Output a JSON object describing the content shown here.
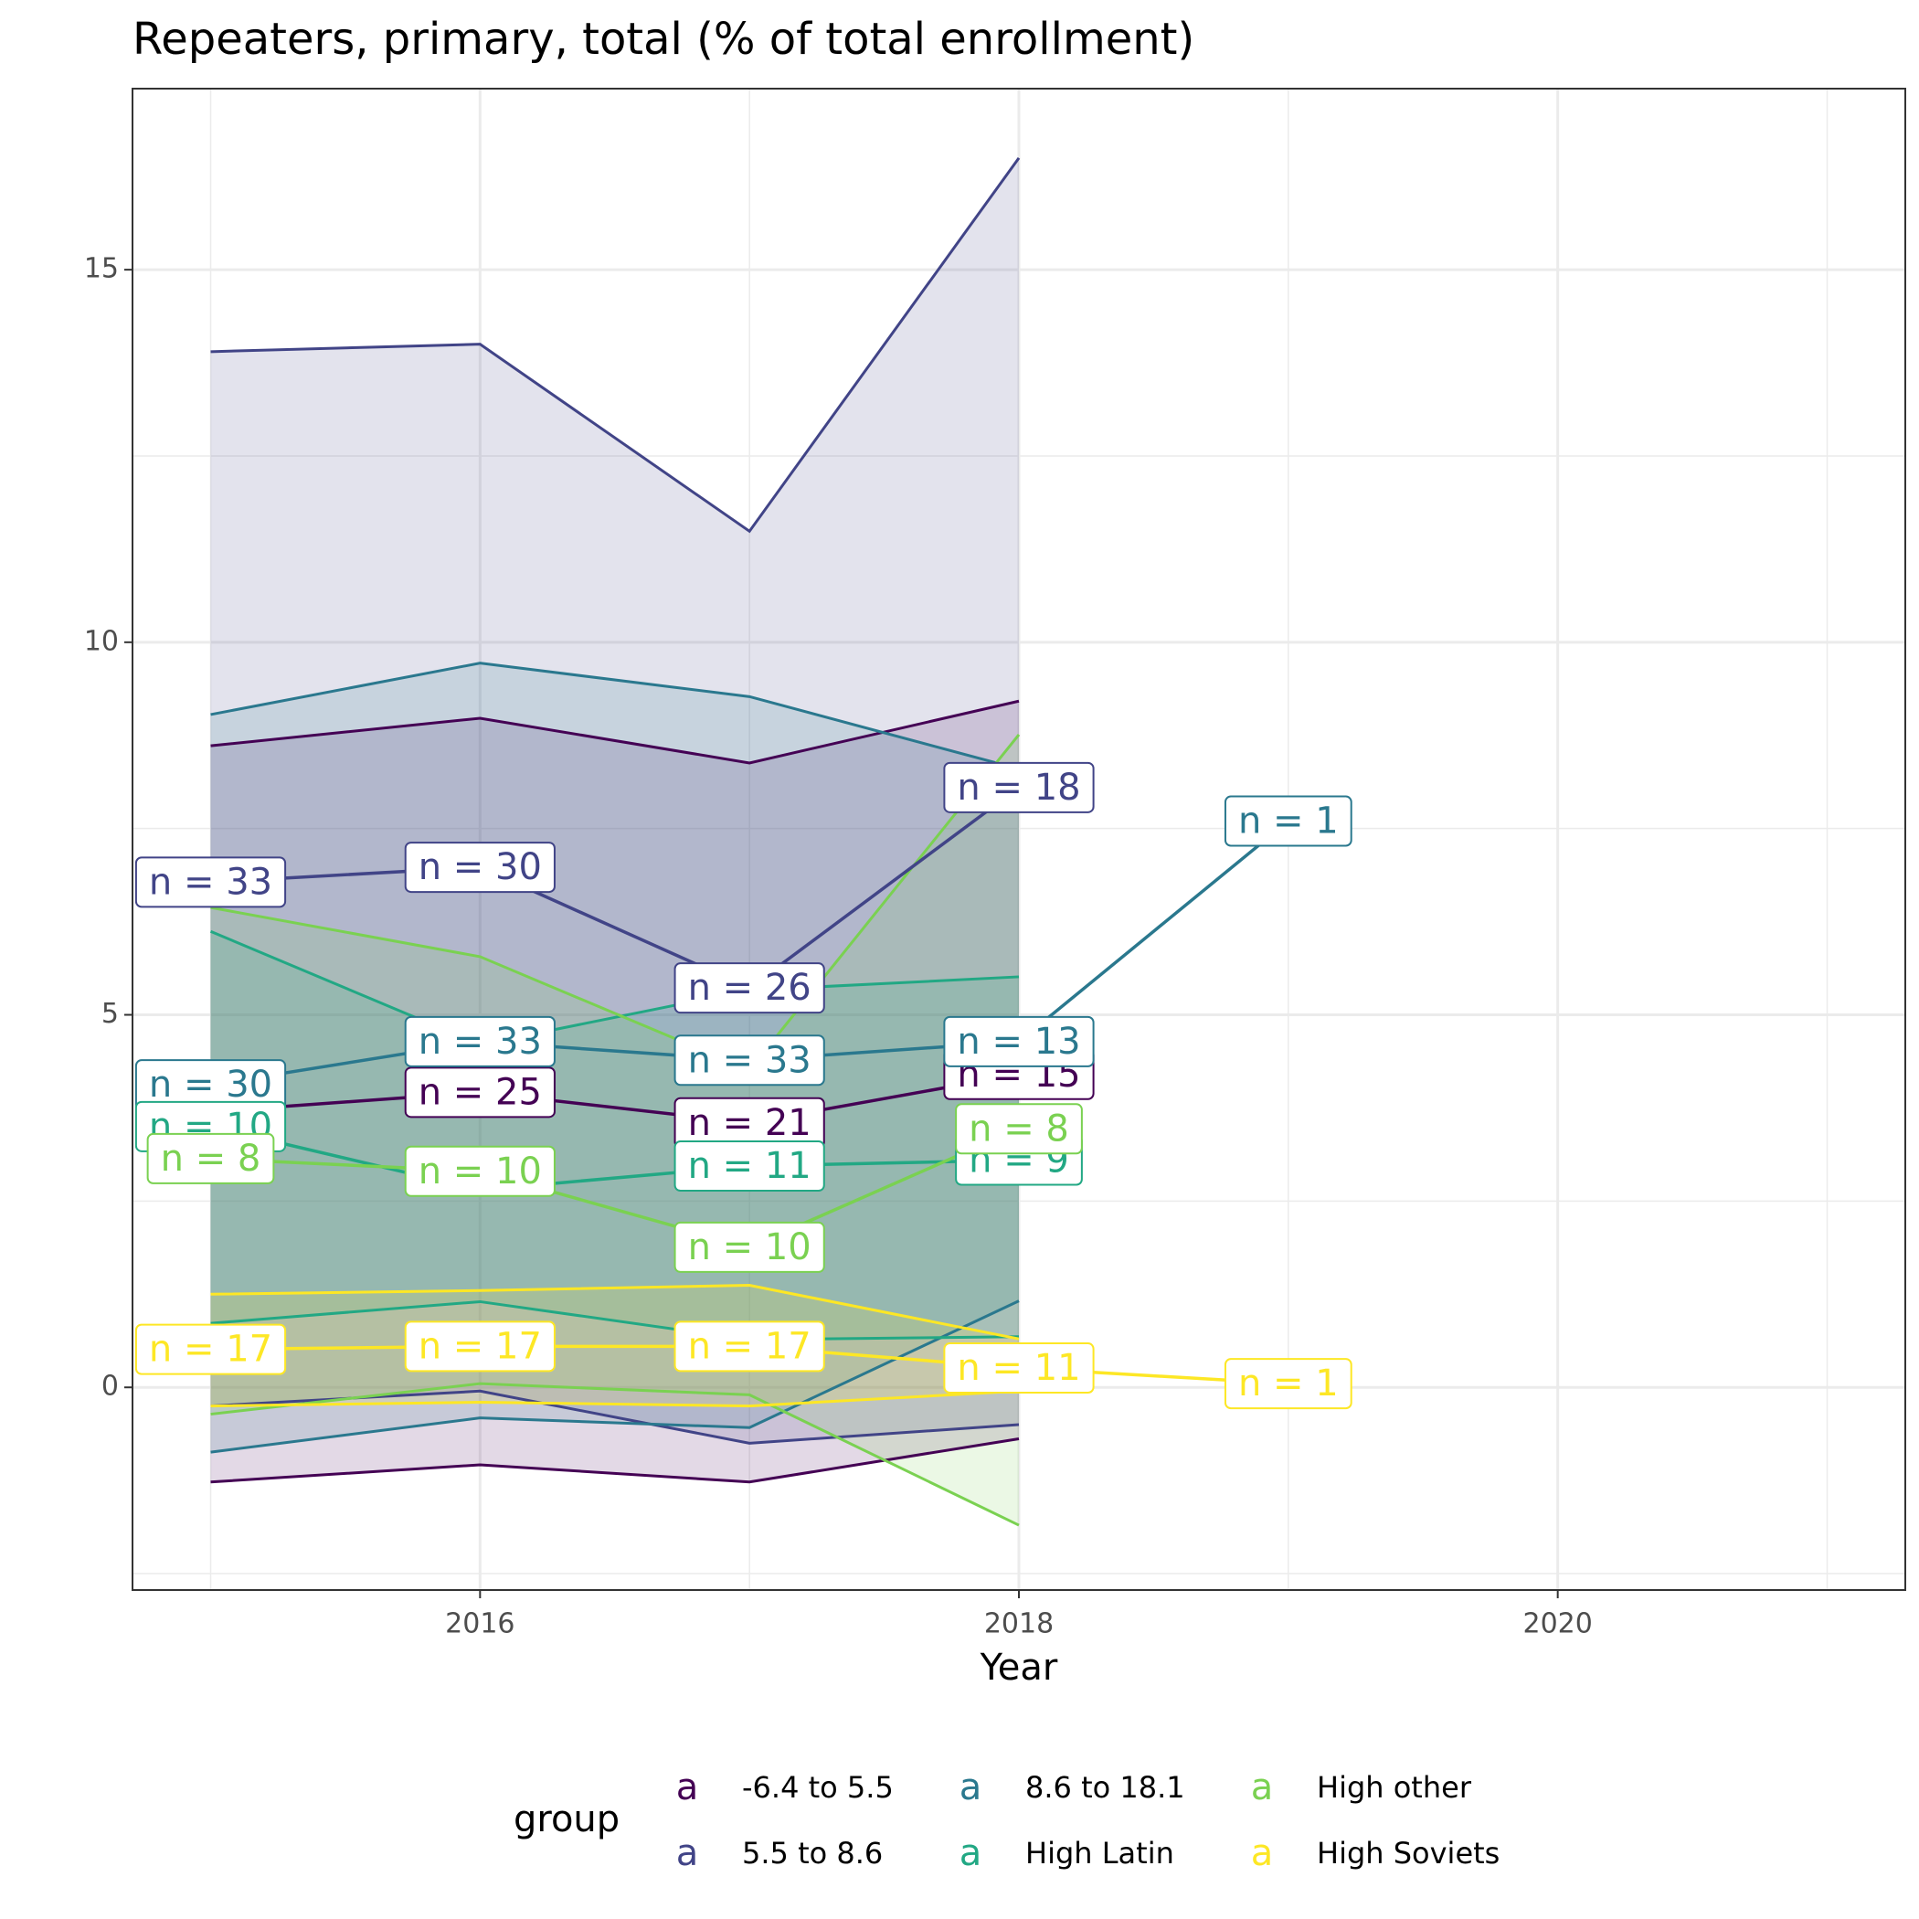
{
  "chart_data": {
    "type": "line",
    "title": "Repeaters, primary, total (% of total enrollment)",
    "x_label": "Year",
    "legend_title": "group",
    "legend_glyph": "a",
    "legend_position": "bottom",
    "grid": true,
    "ribbon_opacity": 0.15,
    "x": [
      2015,
      2016,
      2017,
      2018,
      2019
    ],
    "xlim": [
      2014.71,
      2021.29
    ],
    "xticks": [
      2016,
      2018,
      2020
    ],
    "ylim": [
      -2.72,
      17.43
    ],
    "yticks": [
      0,
      5,
      10,
      15
    ],
    "series": [
      {
        "name": "-6.4 to 5.5",
        "color": "#440154",
        "values": [
          3.7,
          3.96,
          3.55,
          4.2,
          null
        ],
        "upper": [
          8.61,
          8.98,
          8.38,
          9.21,
          null
        ],
        "lower": [
          -1.27,
          -1.04,
          -1.27,
          -0.69,
          null
        ],
        "labels": [
          null,
          "n = 25",
          "n = 21",
          "n = 15",
          null
        ]
      },
      {
        "name": "5.5 to 8.6",
        "color": "#414487",
        "values": [
          6.78,
          6.98,
          5.36,
          8.05,
          null
        ],
        "upper": [
          13.9,
          14.0,
          11.49,
          16.5,
          null
        ],
        "lower": [
          -0.25,
          -0.05,
          -0.75,
          -0.5,
          null
        ],
        "labels": [
          "n = 33",
          "n = 30",
          "n = 26",
          "n = 18",
          null
        ]
      },
      {
        "name": "8.6 to 18.1",
        "color": "#2A788E",
        "values": [
          4.06,
          4.64,
          4.39,
          4.64,
          7.6
        ],
        "upper": [
          9.03,
          9.72,
          9.27,
          8.3,
          null
        ],
        "lower": [
          -0.87,
          -0.41,
          -0.54,
          1.16,
          null
        ],
        "labels": [
          "n = 30",
          "n = 33",
          "n = 33",
          "n = 13",
          "n = 1"
        ]
      },
      {
        "name": "High Latin",
        "color": "#22A884",
        "values": [
          3.5,
          2.65,
          2.97,
          3.05,
          null
        ],
        "upper": [
          6.12,
          4.6,
          5.33,
          5.51,
          null
        ],
        "lower": [
          0.86,
          1.15,
          0.64,
          0.68,
          null
        ],
        "labels": [
          "n = 10",
          null,
          "n = 11",
          "n = 9",
          null
        ]
      },
      {
        "name": "High other",
        "color": "#7AD151",
        "values": [
          3.07,
          2.9,
          1.88,
          3.47,
          null
        ],
        "upper": [
          6.44,
          5.78,
          4.26,
          8.76,
          null
        ],
        "lower": [
          -0.36,
          0.05,
          -0.1,
          -1.85,
          null
        ],
        "labels": [
          "n = 8",
          "n = 10",
          "n = 10",
          "n = 8",
          null
        ]
      },
      {
        "name": "High Soviets",
        "color": "#FDE725",
        "values": [
          0.51,
          0.55,
          0.55,
          0.26,
          0.05
        ],
        "upper": [
          1.25,
          1.3,
          1.37,
          0.65,
          null
        ],
        "lower": [
          -0.25,
          -0.2,
          -0.25,
          -0.05,
          null
        ],
        "labels": [
          "n = 17",
          "n = 17",
          "n = 17",
          "n = 11",
          "n = 1"
        ]
      }
    ]
  }
}
